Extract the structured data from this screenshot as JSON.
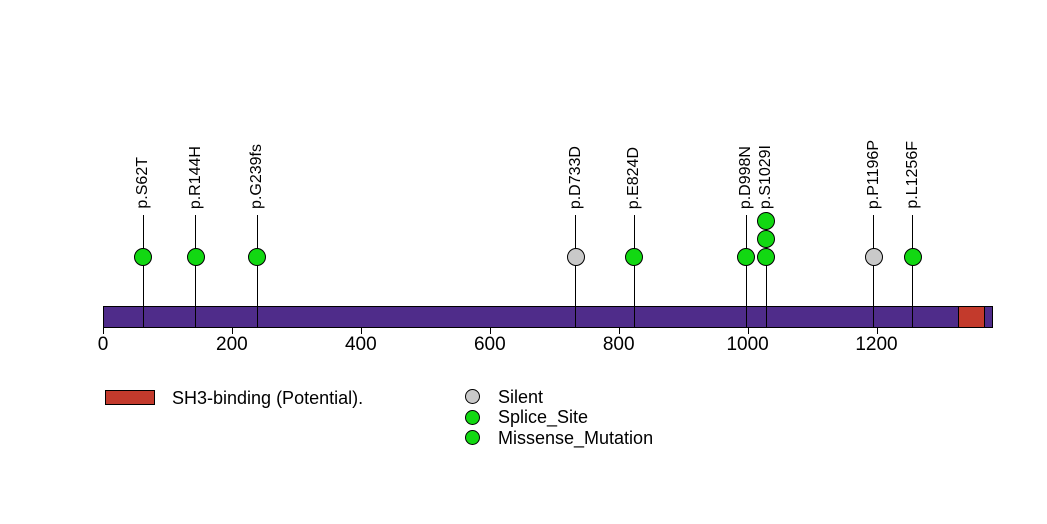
{
  "colors": {
    "background": "#ffffff",
    "protein_bar": "#4F2C8A",
    "domain_red": "#C33A2C",
    "mutation_green": "#12D812",
    "mutation_gray": "#C9C9C9",
    "stroke": "#000000"
  },
  "chart_data": {
    "type": "lollipop",
    "title": "",
    "xlabel": "",
    "ylabel": "",
    "xlim": [
      0,
      1380
    ],
    "protein_length": 1380,
    "axis": {
      "ticks": [
        0,
        200,
        400,
        600,
        800,
        1000,
        1200
      ]
    },
    "mutations": [
      {
        "label": "p.S62T",
        "position": 62,
        "count": 1,
        "color": "green"
      },
      {
        "label": "p.R144H",
        "position": 144,
        "count": 1,
        "color": "green"
      },
      {
        "label": "p.G239fs",
        "position": 239,
        "count": 1,
        "color": "green"
      },
      {
        "label": "p.D733D",
        "position": 733,
        "count": 1,
        "color": "gray"
      },
      {
        "label": "p.E824D",
        "position": 824,
        "count": 1,
        "color": "green"
      },
      {
        "label": "p.D998N",
        "position": 998,
        "count": 1,
        "color": "green"
      },
      {
        "label": "p.S1029I",
        "position": 1029,
        "count": 3,
        "color": "green"
      },
      {
        "label": "p.P1196P",
        "position": 1196,
        "count": 1,
        "color": "gray"
      },
      {
        "label": "p.L1256F",
        "position": 1256,
        "count": 1,
        "color": "green"
      }
    ],
    "domains": [
      {
        "label": "SH3-binding (Potential).",
        "start": 1327,
        "end": 1368,
        "color": "#C33A2C"
      }
    ],
    "legend": {
      "domain_items": [
        {
          "label": "SH3-binding (Potential).",
          "color": "#C33A2C"
        }
      ],
      "mutation_items": [
        {
          "label": "Silent",
          "color": "gray"
        },
        {
          "label": "Splice_Site",
          "color": "green"
        },
        {
          "label": "Missense_Mutation",
          "color": "green"
        }
      ]
    }
  }
}
